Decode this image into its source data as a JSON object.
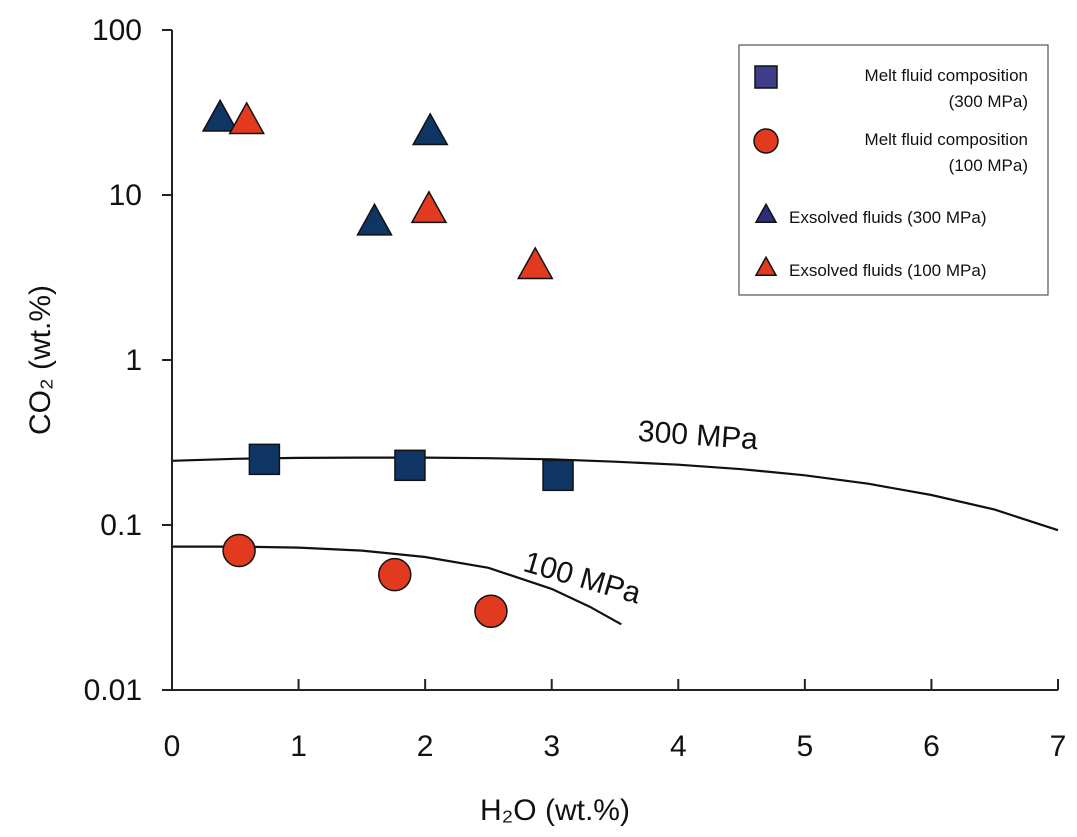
{
  "chart_data": {
    "type": "scatter",
    "title": "",
    "xlabel": "H₂O (wt.%)",
    "ylabel": "CO₂ (wt.%)",
    "xlim": [
      0,
      7
    ],
    "ylim": [
      0.01,
      100
    ],
    "y_scale": "log",
    "grid": false,
    "legend_position": "top-right",
    "x_ticks": [
      "0",
      "1",
      "2",
      "3",
      "4",
      "5",
      "6",
      "7"
    ],
    "y_ticks": [
      "0.01",
      "0.1",
      "1",
      "10",
      "100"
    ],
    "colors": {
      "navy": "#0f3564",
      "red": "#e23a1f",
      "legend_square": "#3f3c8a",
      "legend_triangle": "#2b2f7c"
    },
    "series": [
      {
        "name": "Melt fluid composition (300 MPa)",
        "legend_lines": [
          "Melt fluid composition",
          "(300 MPa)"
        ],
        "marker": "square",
        "x": [
          0.73,
          1.88,
          3.05
        ],
        "y": [
          0.25,
          0.23,
          0.2
        ]
      },
      {
        "name": "Melt fluid composition (100 MPa)",
        "legend_lines": [
          "Melt fluid composition",
          "(100 MPa)"
        ],
        "marker": "circle",
        "x": [
          0.53,
          1.76,
          2.52
        ],
        "y": [
          0.07,
          0.05,
          0.03
        ]
      },
      {
        "name": "Exsolved fluids (300 MPa)",
        "legend_lines": [
          "Exsolved fluids (300 MPa)"
        ],
        "marker": "triangle",
        "x": [
          0.38,
          1.6,
          2.04
        ],
        "y": [
          29,
          6.8,
          24
        ]
      },
      {
        "name": "Exsolved fluids (100 MPa)",
        "legend_lines": [
          "Exsolved fluids (100 MPa)"
        ],
        "marker": "triangle",
        "x": [
          0.59,
          2.03,
          2.87
        ],
        "y": [
          28,
          8.1,
          3.7
        ]
      }
    ],
    "curves": [
      {
        "label": "300 MPa",
        "x": [
          0,
          0.5,
          1,
          1.5,
          2,
          2.5,
          3,
          3.5,
          4,
          4.5,
          5,
          5.5,
          6,
          6.5,
          7
        ],
        "y": [
          0.245,
          0.252,
          0.255,
          0.256,
          0.256,
          0.254,
          0.25,
          0.242,
          0.232,
          0.218,
          0.2,
          0.178,
          0.152,
          0.124,
          0.093
        ]
      },
      {
        "label": "100 MPa",
        "x": [
          0,
          0.5,
          1,
          1.5,
          2,
          2.5,
          3,
          3.3,
          3.55
        ],
        "y": [
          0.074,
          0.074,
          0.073,
          0.07,
          0.064,
          0.055,
          0.041,
          0.032,
          0.025
        ]
      }
    ]
  }
}
